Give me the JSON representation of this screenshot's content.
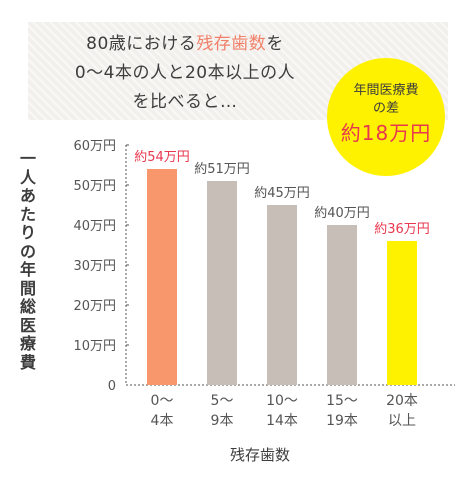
{
  "header": {
    "line1_pre": "80歳における",
    "line1_accent": "残存歯数",
    "line1_post": "を",
    "line2": "0～4本の人と20本以上の人",
    "line3": "を比べると…"
  },
  "badge": {
    "line1": "年間医療費",
    "line2": "の差",
    "line3": "約18万円"
  },
  "colors": {
    "bar_default": "#c7bfb7",
    "bar_first": "#f8966c",
    "bar_last": "#fff200",
    "label_default": "#555555",
    "label_accent": "#e8384f",
    "axis": "#555555",
    "badge_bg": "#fff200"
  },
  "chart_data": {
    "type": "bar",
    "categories": [
      [
        "0～",
        "4本"
      ],
      [
        "5～",
        "9本"
      ],
      [
        "10～",
        "14本"
      ],
      [
        "15～",
        "19本"
      ],
      [
        "20本",
        "以上"
      ]
    ],
    "values": [
      54,
      51,
      45,
      40,
      36
    ],
    "value_labels": [
      "約54万円",
      "約51万円",
      "約45万円",
      "約40万円",
      "約36万円"
    ],
    "ylabel": "一人あたりの年間総医療費",
    "xlabel": "残存歯数",
    "ylim": [
      0,
      60
    ],
    "yticks": [
      0,
      10,
      20,
      30,
      40,
      50,
      60
    ],
    "ytick_labels": [
      "0",
      "10万円",
      "20万円",
      "30万円",
      "40万円",
      "50万円",
      "60万円"
    ],
    "grid": false
  }
}
